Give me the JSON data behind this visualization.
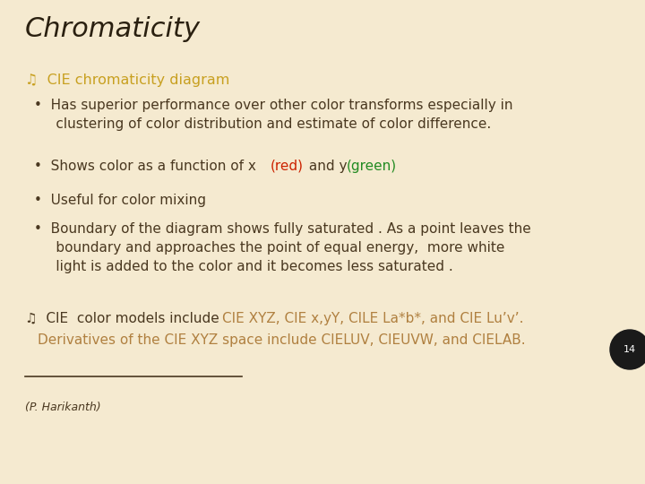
{
  "background_color": "#f5ead0",
  "title": "Chromaticity",
  "title_color": "#2a2010",
  "title_fontsize": 22,
  "heading1_color": "#c8a020",
  "heading1_text": "CIE chromaticity diagram",
  "heading1_fontsize": 11.5,
  "bullet_color": "#4a3820",
  "bullet_fontsize": 11,
  "bullet2_prefix": "•  Shows color as a function of x ",
  "bullet2_mid": " and y ",
  "red_color": "#cc2200",
  "green_color": "#228b22",
  "heading2_prefix": "CIE  color models include ",
  "heading2_colored": "CIE XYZ, CIE x,yY, CILE La*b*, and CIE Lu’v’.",
  "heading2_line2": "Derivatives of the CIE XYZ space include CIELUV, CIEUVW, and CIELAB.",
  "heading2_color": "#b08040",
  "heading2_prefix_color": "#4a3820",
  "heading2_fontsize": 11,
  "footer_text": "(P. Harikanth)",
  "footer_color": "#4a3820",
  "footer_fontsize": 9,
  "page_number": "14",
  "page_number_color": "#ffffff",
  "page_circle_color": "#1a1a1a",
  "symbol_color": "#c8a020",
  "symbol_color2": "#4a3820"
}
